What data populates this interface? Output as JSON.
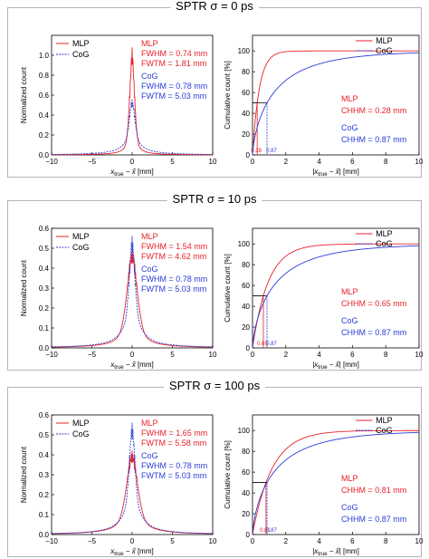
{
  "panels": [
    {
      "title": "SPTR σ = 0 ps",
      "left_chart": {
        "legend": [
          "MLP",
          "CoG"
        ],
        "mlp_annot": [
          "MLP",
          "FWHM = 0.74 mm",
          "FWTM = 1.81 mm"
        ],
        "cog_annot": [
          "CoG",
          "FWHM = 0.78 mm",
          "FWTM = 5.03 mm"
        ]
      },
      "right_chart": {
        "legend": [
          "MLP",
          "CoG"
        ],
        "mlp_annot": [
          "MLP",
          "CHHM = 0.28 mm"
        ],
        "cog_annot": [
          "CoG",
          "CHHM = 0.87 mm"
        ],
        "marker_labels": [
          "0.28",
          "0.87"
        ]
      }
    },
    {
      "title": "SPTR σ = 10 ps",
      "left_chart": {
        "legend": [
          "MLP",
          "CoG"
        ],
        "mlp_annot": [
          "MLP",
          "FWHM = 1.54 mm",
          "FWTM = 4.62 mm"
        ],
        "cog_annot": [
          "CoG",
          "FWHM = 0.78 mm",
          "FWTM = 5.03 mm"
        ]
      },
      "right_chart": {
        "legend": [
          "MLP",
          "CoG"
        ],
        "mlp_annot": [
          "MLP",
          "CHHM = 0.65 mm"
        ],
        "cog_annot": [
          "CoG",
          "CHHM = 0.87 mm"
        ],
        "marker_labels": [
          "0.65",
          "0.87"
        ]
      }
    },
    {
      "title": "SPTR σ = 100 ps",
      "left_chart": {
        "legend": [
          "MLP",
          "CoG"
        ],
        "mlp_annot": [
          "MLP",
          "FWHM = 1.65 mm",
          "FWTM = 5.58 mm"
        ],
        "cog_annot": [
          "CoG",
          "FWHM = 0.78 mm",
          "FWTM = 5.03 mm"
        ]
      },
      "right_chart": {
        "legend": [
          "MLP",
          "CoG"
        ],
        "mlp_annot": [
          "MLP",
          "CHHM = 0.81 mm"
        ],
        "cog_annot": [
          "CoG",
          "CHHM = 0.87 mm"
        ],
        "marker_labels": [
          "0.81",
          "0.87"
        ]
      }
    }
  ],
  "colors": {
    "mlp": "#e8202a",
    "cog": "#2a3cd6"
  },
  "chart_data": [
    {
      "type": "line",
      "title": "SPTR σ = 0 ps",
      "xlabel": "x_true − x̂ [mm]",
      "ylabel": "Normalized count",
      "xlim": [
        -10,
        10
      ],
      "ylim": [
        0,
        1.2
      ],
      "xticks": [
        "−10",
        "−5",
        "0",
        "5",
        "10"
      ],
      "yticks": [
        "0.0",
        "0.2",
        "0.4",
        "0.6",
        "0.8",
        "1.0"
      ],
      "series": [
        {
          "name": "MLP",
          "peak": 1.0,
          "fwhm": 0.74,
          "fwtm": 1.81
        },
        {
          "name": "CoG",
          "peak": 0.52,
          "fwhm": 0.78,
          "fwtm": 5.03
        }
      ]
    },
    {
      "type": "line",
      "title": "SPTR σ = 0 ps",
      "xlabel": "|x_true − x̂| [mm]",
      "ylabel": "Cumulative count [%]",
      "xlim": [
        0,
        10
      ],
      "ylim": [
        0,
        115
      ],
      "xticks": [
        "0",
        "2",
        "4",
        "6",
        "8",
        "10"
      ],
      "yticks": [
        "0",
        "20",
        "40",
        "60",
        "80",
        "100"
      ],
      "series": [
        {
          "name": "MLP",
          "chhm": 0.28
        },
        {
          "name": "CoG",
          "chhm": 0.87
        }
      ]
    },
    {
      "type": "line",
      "title": "SPTR σ = 10 ps",
      "xlabel": "x_true − x̂ [mm]",
      "ylabel": "Normalized count",
      "xlim": [
        -10,
        10
      ],
      "ylim": [
        0,
        0.6
      ],
      "xticks": [
        "−10",
        "−5",
        "0",
        "5",
        "10"
      ],
      "yticks": [
        "0.0",
        "0.1",
        "0.2",
        "0.3",
        "0.4",
        "0.5",
        "0.6"
      ],
      "series": [
        {
          "name": "MLP",
          "peak": 0.46,
          "fwhm": 1.54,
          "fwtm": 4.62
        },
        {
          "name": "CoG",
          "peak": 0.52,
          "fwhm": 0.78,
          "fwtm": 5.03
        }
      ]
    },
    {
      "type": "line",
      "title": "SPTR σ = 10 ps",
      "xlabel": "|x_true − x̂| [mm]",
      "ylabel": "Cumulative count [%]",
      "xlim": [
        0,
        10
      ],
      "ylim": [
        0,
        115
      ],
      "xticks": [
        "0",
        "2",
        "4",
        "6",
        "8",
        "10"
      ],
      "yticks": [
        "0",
        "20",
        "40",
        "60",
        "80",
        "100"
      ],
      "series": [
        {
          "name": "MLP",
          "chhm": 0.65
        },
        {
          "name": "CoG",
          "chhm": 0.87
        }
      ]
    },
    {
      "type": "line",
      "title": "SPTR σ = 100 ps",
      "xlabel": "x_true − x̂ [mm]",
      "ylabel": "Normalized count",
      "xlim": [
        -10,
        10
      ],
      "ylim": [
        0,
        0.6
      ],
      "xticks": [
        "−10",
        "−5",
        "0",
        "5",
        "10"
      ],
      "yticks": [
        "0.0",
        "0.1",
        "0.2",
        "0.3",
        "0.4",
        "0.5",
        "0.6"
      ],
      "series": [
        {
          "name": "MLP",
          "peak": 0.39,
          "fwhm": 1.65,
          "fwtm": 5.58
        },
        {
          "name": "CoG",
          "peak": 0.52,
          "fwhm": 0.78,
          "fwtm": 5.03
        }
      ]
    },
    {
      "type": "line",
      "title": "SPTR σ = 100 ps",
      "xlabel": "|x_true − x̂| [mm]",
      "ylabel": "Cumulative count [%]",
      "xlim": [
        0,
        10
      ],
      "ylim": [
        0,
        115
      ],
      "xticks": [
        "0",
        "2",
        "4",
        "6",
        "8",
        "10"
      ],
      "yticks": [
        "0",
        "20",
        "40",
        "60",
        "80",
        "100"
      ],
      "series": [
        {
          "name": "MLP",
          "chhm": 0.81
        },
        {
          "name": "CoG",
          "chhm": 0.87
        }
      ]
    }
  ]
}
